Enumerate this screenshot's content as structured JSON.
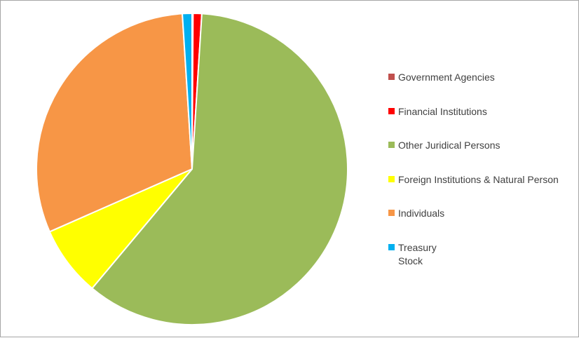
{
  "chart_data": {
    "type": "pie",
    "title": "",
    "legend_position": "right",
    "slices": [
      {
        "label": "Government Agencies",
        "value": 0.1,
        "color": "#c0504d"
      },
      {
        "label": "Financial Institutions",
        "value": 0.9,
        "color": "#ff0000"
      },
      {
        "label": "Other Juridical Persons",
        "value": 60.1,
        "color": "#9bbb59"
      },
      {
        "label": "Foreign Institutions & Natural Person",
        "value": 7.3,
        "color": "#ffff00"
      },
      {
        "label": "Individuals",
        "value": 30.6,
        "color": "#f79646"
      },
      {
        "label": "Treasury Stock",
        "value": 1.0,
        "color": "#00b0f0"
      }
    ]
  }
}
